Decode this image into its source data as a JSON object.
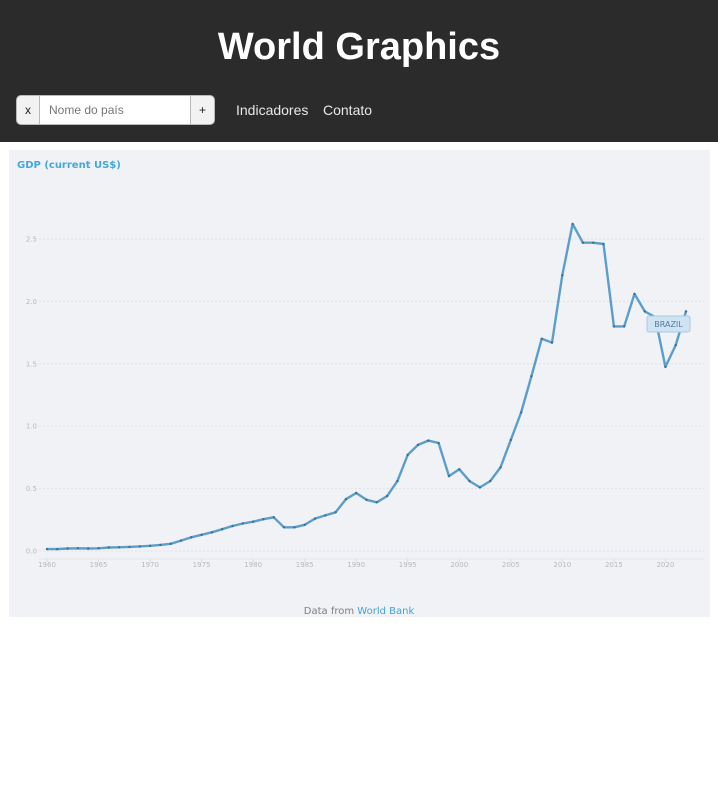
{
  "header": {
    "title": "World Graphics"
  },
  "navbar": {
    "clear_label": "x",
    "add_label": "+",
    "country_placeholder": "Nome do país",
    "country_value": "",
    "links": [
      "Indicadores",
      "Contato"
    ]
  },
  "chart_data": {
    "type": "line",
    "title": "GDP (current US$)",
    "xlabel": "",
    "ylabel": "",
    "xlim": [
      1960,
      2022
    ],
    "ylim": [
      0,
      2.5
    ],
    "x_ticks": [
      "1960",
      "1965",
      "1970",
      "1975",
      "1980",
      "1985",
      "1990",
      "1995",
      "2000",
      "2005",
      "2010",
      "2015",
      "2020"
    ],
    "y_ticks": [
      "0.0",
      "0.5",
      "1.0",
      "1.5",
      "2.0",
      "2.5"
    ],
    "grid": true,
    "series": [
      {
        "name": "BRAZIL",
        "color": "#5b9ec9",
        "x": [
          1960,
          1961,
          1962,
          1963,
          1964,
          1965,
          1966,
          1967,
          1968,
          1969,
          1970,
          1971,
          1972,
          1973,
          1974,
          1975,
          1976,
          1977,
          1978,
          1979,
          1980,
          1981,
          1982,
          1983,
          1984,
          1985,
          1986,
          1987,
          1988,
          1989,
          1990,
          1991,
          1992,
          1993,
          1994,
          1995,
          1996,
          1997,
          1998,
          1999,
          2000,
          2001,
          2002,
          2003,
          2004,
          2005,
          2006,
          2007,
          2008,
          2009,
          2010,
          2011,
          2012,
          2013,
          2014,
          2015,
          2016,
          2017,
          2018,
          2019,
          2020,
          2021,
          2022
        ],
        "values": [
          0.015,
          0.015,
          0.02,
          0.022,
          0.02,
          0.022,
          0.028,
          0.03,
          0.033,
          0.037,
          0.042,
          0.049,
          0.058,
          0.083,
          0.11,
          0.13,
          0.15,
          0.175,
          0.2,
          0.22,
          0.235,
          0.255,
          0.27,
          0.19,
          0.19,
          0.21,
          0.26,
          0.285,
          0.31,
          0.415,
          0.465,
          0.41,
          0.39,
          0.44,
          0.56,
          0.77,
          0.85,
          0.885,
          0.865,
          0.6,
          0.655,
          0.56,
          0.51,
          0.56,
          0.67,
          0.89,
          1.11,
          1.4,
          1.7,
          1.67,
          2.21,
          2.62,
          2.47,
          2.47,
          2.46,
          1.8,
          1.8,
          2.06,
          1.92,
          1.875,
          1.475,
          1.65,
          1.92
        ]
      }
    ],
    "series_label": "BRAZIL",
    "source_prefix": "Data from ",
    "source_link": "World Bank"
  }
}
